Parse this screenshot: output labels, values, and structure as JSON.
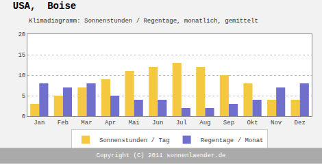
{
  "chart_data": {
    "type": "bar",
    "title": "USA,  Boise",
    "subtitle": "Klimadiagramm: Sonnenstunden / Regentage, monatlich, gemittelt",
    "categories": [
      "Jan",
      "Feb",
      "Mar",
      "Apr",
      "Mai",
      "Jun",
      "Jul",
      "Aug",
      "Sep",
      "Okt",
      "Nov",
      "Dez"
    ],
    "series": [
      {
        "name": "Sonnenstunden / Tag",
        "color": "#F5C842",
        "values": [
          3,
          5,
          7,
          9,
          11,
          12,
          13,
          12,
          10,
          8,
          4,
          4
        ]
      },
      {
        "name": "Regentage / Monat",
        "color": "#7070CC",
        "values": [
          8,
          7,
          8,
          5,
          4,
          4,
          2,
          2,
          3,
          4,
          7,
          8
        ]
      }
    ],
    "ylim": [
      0,
      20
    ],
    "yticks": [
      0,
      5,
      10,
      15,
      20
    ],
    "grid": true,
    "legend": "bottom",
    "annotations": [
      "Copyright (C) 2011 sonnenlaender.de"
    ]
  }
}
